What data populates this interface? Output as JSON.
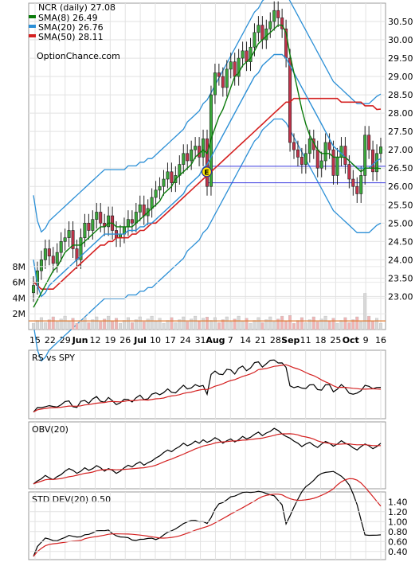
{
  "chart_data": {
    "type": "candlestick",
    "title": "NCR (daily) 27.08",
    "source": "OptionChance.com",
    "grid": true,
    "x_tick_labels": [
      "15",
      "22",
      "29",
      "Jun",
      "12",
      "19",
      "26",
      "Jul",
      "10",
      "17",
      "24",
      "31",
      "Aug",
      "7",
      "14",
      "21",
      "28",
      "Sep",
      "11",
      "18",
      "25",
      "Oct",
      "9",
      "16"
    ],
    "x_tick_bold": [
      "Jun",
      "Jul",
      "Aug",
      "Sep",
      "Oct"
    ],
    "price_panel": {
      "ylim": [
        22.4,
        31.0
      ],
      "y_ticks": [
        "23.00",
        "23.50",
        "24.00",
        "24.50",
        "25.00",
        "25.50",
        "26.00",
        "26.50",
        "27.00",
        "27.50",
        "28.00",
        "28.50",
        "29.00",
        "29.50",
        "30.00",
        "30.50"
      ],
      "legend": [
        {
          "label": "SMA(8) 26.49",
          "color": "#0a7a0a"
        },
        {
          "label": "SMA(20) 26.76",
          "color": "#2b8fd6"
        },
        {
          "label": "SMA(50) 28.11",
          "color": "#d42020"
        }
      ],
      "close": [
        23.3,
        23.7,
        24.0,
        24.3,
        24.1,
        23.9,
        24.2,
        24.5,
        24.6,
        24.8,
        24.3,
        24.0,
        24.6,
        25.0,
        24.8,
        25.1,
        25.3,
        25.0,
        24.9,
        25.2,
        24.8,
        24.6,
        24.7,
        24.9,
        25.1,
        25.0,
        25.3,
        25.5,
        25.2,
        25.4,
        25.7,
        25.9,
        26.0,
        26.2,
        26.4,
        26.1,
        26.3,
        26.6,
        26.9,
        26.7,
        27.0,
        27.1,
        26.8,
        27.3,
        26.0,
        28.5,
        29.1,
        29.0,
        28.7,
        29.2,
        29.4,
        29.0,
        29.5,
        29.7,
        29.4,
        29.8,
        30.2,
        30.4,
        30.0,
        30.3,
        30.5,
        30.8,
        30.6,
        30.3,
        29.5,
        27.2,
        27.0,
        26.8,
        26.6,
        26.9,
        27.3,
        27.0,
        26.5,
        26.7,
        27.2,
        27.0,
        26.3,
        26.8,
        27.1,
        26.6,
        26.2,
        26.0,
        25.8,
        26.3,
        27.4,
        27.0,
        26.4,
        26.9,
        27.08
      ],
      "sma8": [
        22.7,
        22.9,
        23.1,
        23.3,
        23.5,
        23.7,
        23.8,
        24.0,
        24.2,
        24.3,
        24.4,
        24.4,
        24.4,
        24.5,
        24.6,
        24.7,
        24.8,
        24.9,
        24.9,
        25.0,
        25.0,
        24.9,
        24.9,
        24.9,
        24.9,
        24.9,
        25.0,
        25.1,
        25.2,
        25.3,
        25.4,
        25.5,
        25.6,
        25.8,
        25.9,
        26.0,
        26.2,
        26.3,
        26.4,
        26.5,
        26.6,
        26.8,
        26.9,
        27.0,
        26.9,
        27.3,
        27.6,
        27.9,
        28.1,
        28.4,
        28.7,
        29.0,
        29.1,
        29.3,
        29.4,
        29.5,
        29.7,
        29.9,
        30.0,
        30.1,
        30.2,
        30.3,
        30.4,
        30.4,
        30.2,
        29.6,
        29.1,
        28.6,
        28.1,
        27.7,
        27.4,
        27.2,
        27.0,
        26.9,
        26.9,
        26.9,
        26.8,
        26.8,
        26.8,
        26.8,
        26.7,
        26.6,
        26.5,
        26.4,
        26.5,
        26.5,
        26.5,
        26.5,
        26.49
      ],
      "sma20": [
        24.0,
        23.3,
        23.0,
        23.1,
        23.3,
        23.4,
        23.5,
        23.6,
        23.7,
        23.8,
        23.9,
        24.0,
        24.1,
        24.2,
        24.3,
        24.4,
        24.5,
        24.6,
        24.7,
        24.7,
        24.7,
        24.7,
        24.7,
        24.7,
        24.8,
        24.8,
        24.8,
        24.9,
        24.9,
        25.0,
        25.0,
        25.1,
        25.2,
        25.3,
        25.4,
        25.5,
        25.6,
        25.7,
        25.8,
        26.0,
        26.1,
        26.2,
        26.3,
        26.5,
        26.6,
        26.8,
        27.0,
        27.2,
        27.4,
        27.6,
        27.8,
        28.0,
        28.2,
        28.4,
        28.6,
        28.8,
        29.0,
        29.1,
        29.3,
        29.4,
        29.5,
        29.6,
        29.6,
        29.6,
        29.5,
        29.3,
        29.1,
        28.9,
        28.7,
        28.5,
        28.3,
        28.1,
        27.9,
        27.7,
        27.5,
        27.3,
        27.1,
        27.0,
        26.9,
        26.8,
        26.7,
        26.6,
        26.5,
        26.5,
        26.5,
        26.5,
        26.6,
        26.7,
        26.76
      ],
      "sma50": [
        23.4,
        23.3,
        23.2,
        23.2,
        23.2,
        23.2,
        23.3,
        23.4,
        23.5,
        23.6,
        23.7,
        23.8,
        23.9,
        24.0,
        24.1,
        24.2,
        24.3,
        24.4,
        24.4,
        24.5,
        24.5,
        24.6,
        24.6,
        24.6,
        24.6,
        24.7,
        24.7,
        24.8,
        24.8,
        24.9,
        25.0,
        25.0,
        25.1,
        25.2,
        25.3,
        25.4,
        25.5,
        25.6,
        25.7,
        25.8,
        25.9,
        26.0,
        26.1,
        26.2,
        26.3,
        26.4,
        26.5,
        26.6,
        26.7,
        26.8,
        26.9,
        27.0,
        27.1,
        27.2,
        27.3,
        27.4,
        27.5,
        27.6,
        27.7,
        27.8,
        27.9,
        28.0,
        28.1,
        28.2,
        28.3,
        28.3,
        28.4,
        28.4,
        28.4,
        28.4,
        28.4,
        28.4,
        28.4,
        28.4,
        28.4,
        28.4,
        28.4,
        28.4,
        28.3,
        28.3,
        28.3,
        28.3,
        28.3,
        28.3,
        28.2,
        28.2,
        28.2,
        28.1,
        28.11
      ],
      "bollinger_band_width": 1.1,
      "horizontal_levels": [
        26.55,
        26.1
      ],
      "earnings_marker": {
        "label": "E",
        "index": 44,
        "value": 26.4
      }
    },
    "volume_panel": {
      "y_ticks": [
        "2M",
        "4M",
        "6M",
        "8M"
      ],
      "ylim": [
        0,
        9
      ]
    },
    "rs_panel": {
      "label": "RS vs SPY"
    },
    "obv_panel": {
      "label": "OBV(20)"
    },
    "std_panel": {
      "label": "STD DEV(20) 0.50",
      "y_ticks": [
        "0.40",
        "0.60",
        "0.80",
        "1.00",
        "1.20",
        "1.40"
      ],
      "ylim": [
        0.3,
        1.5
      ]
    }
  }
}
